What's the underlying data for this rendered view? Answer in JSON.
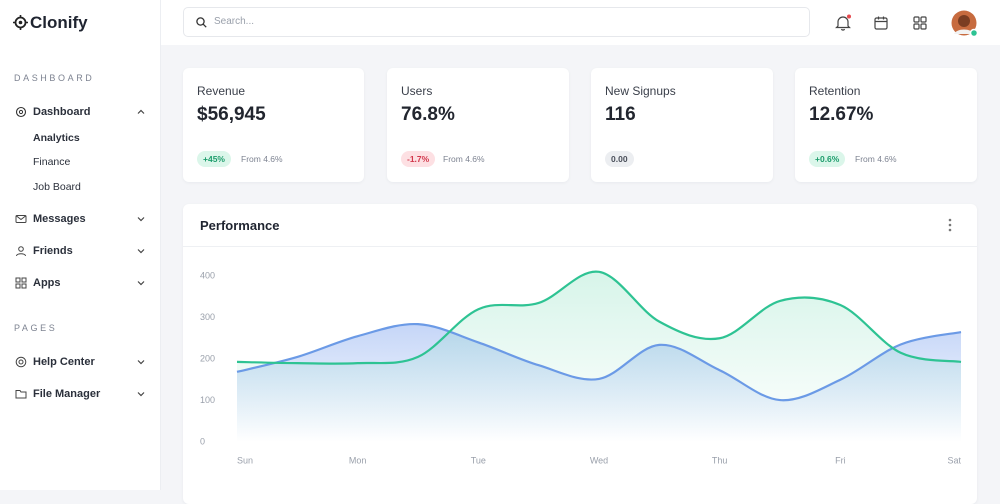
{
  "brand": "Clonify",
  "search_placeholder": "Search...",
  "sidebar": {
    "sections": [
      {
        "title": "DASHBOARD",
        "items": [
          {
            "label": "Dashboard",
            "children": [
              "Analytics",
              "Finance",
              "Job Board"
            ]
          },
          {
            "label": "Messages"
          },
          {
            "label": "Friends"
          },
          {
            "label": "Apps"
          }
        ]
      },
      {
        "title": "PAGES",
        "items": [
          {
            "label": "Help Center"
          },
          {
            "label": "File Manager"
          }
        ]
      }
    ]
  },
  "stats": [
    {
      "label": "Revenue",
      "value": "$56,945",
      "change": "+45%",
      "note": "From 4.6%"
    },
    {
      "label": "Users",
      "value": "76.8%",
      "change": "-1.7%",
      "note": "From 4.6%"
    },
    {
      "label": "New Signups",
      "value": "116",
      "change": "0.00"
    },
    {
      "label": "Retention",
      "value": "12.67%",
      "change": "+0.6%",
      "note": "From 4.6%"
    }
  ],
  "chart_data": {
    "type": "area",
    "title": "Performance",
    "categories": [
      "Sun",
      null,
      "Mon",
      null,
      "Tue",
      null,
      "Wed",
      null,
      "Thu",
      null,
      "Fri",
      null,
      "Sat"
    ],
    "series": [
      {
        "color": "#6b9ae6",
        "values": [
          169,
          205,
          255,
          284,
          240,
          185,
          152,
          234,
          173,
          101,
          150,
          235,
          265
        ]
      },
      {
        "color": "#2ec393",
        "values": [
          193,
          190,
          190,
          205,
          320,
          335,
          410,
          290,
          250,
          340,
          330,
          215,
          193
        ]
      }
    ],
    "ylim": [
      0,
      400
    ],
    "yticks": [
      0,
      100,
      200,
      300,
      400
    ],
    "grid": false
  }
}
